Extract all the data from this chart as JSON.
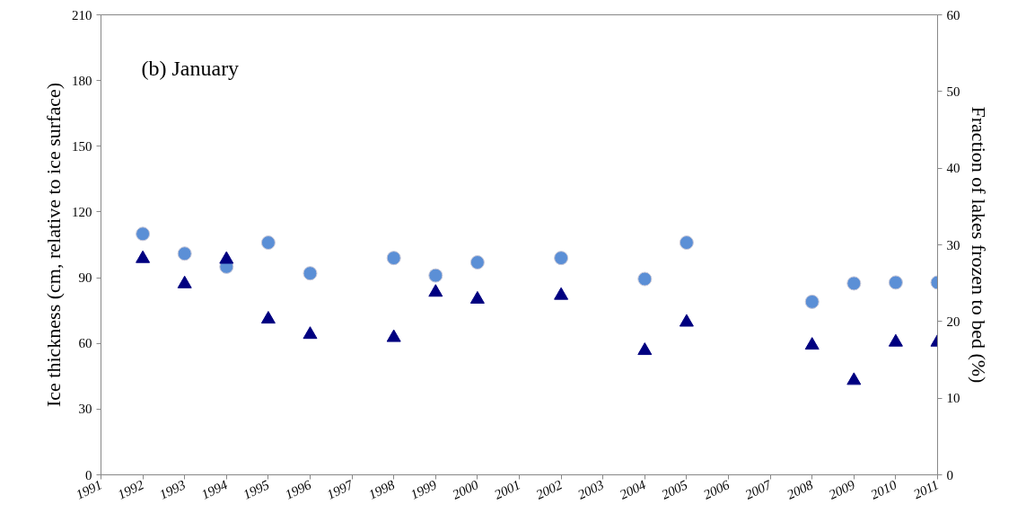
{
  "chart_data": {
    "type": "scatter",
    "annotations": [
      "(b) January"
    ],
    "ylabel": "Ice thickness (cm, relative to ice surface)",
    "y2label": "Fraction of lakes frozen to bed (%)",
    "xlim": [
      1991,
      2011
    ],
    "xticks": [
      1991,
      1992,
      1993,
      1994,
      1995,
      1996,
      1997,
      1998,
      1999,
      2000,
      2001,
      2002,
      2003,
      2004,
      2005,
      2006,
      2007,
      2008,
      2009,
      2010,
      2011
    ],
    "ylim": [
      0,
      210
    ],
    "yticks": [
      0,
      30,
      60,
      90,
      120,
      150,
      180,
      210
    ],
    "y2lim": [
      0,
      60
    ],
    "y2ticks": [
      0,
      10,
      20,
      30,
      40,
      50,
      60
    ],
    "grid": false,
    "series": [
      {
        "color": "#5b8fd6",
        "marker": "circle",
        "x": [
          1992,
          1993,
          1994,
          1995,
          1996,
          1998,
          1999,
          2000,
          2002,
          2004,
          2005,
          2008,
          2009,
          2010,
          2011
        ],
        "values": [
          110,
          101,
          95,
          106,
          92,
          99,
          91,
          97,
          99,
          89.4,
          106,
          79,
          87.4,
          87.8,
          87.8
        ]
      },
      {
        "color": "#000080",
        "marker": "triangle",
        "axis": "y2",
        "x": [
          1992,
          1993,
          1994,
          1995,
          1996,
          1998,
          1999,
          2000,
          2002,
          2004,
          2005,
          2008,
          2009,
          2010,
          2011
        ],
        "values": [
          28.2,
          24.9,
          28.1,
          20.3,
          18.3,
          17.9,
          23.8,
          22.9,
          23.4,
          16.2,
          19.9,
          16.9,
          12.3,
          17.3,
          17.3
        ]
      }
    ]
  }
}
